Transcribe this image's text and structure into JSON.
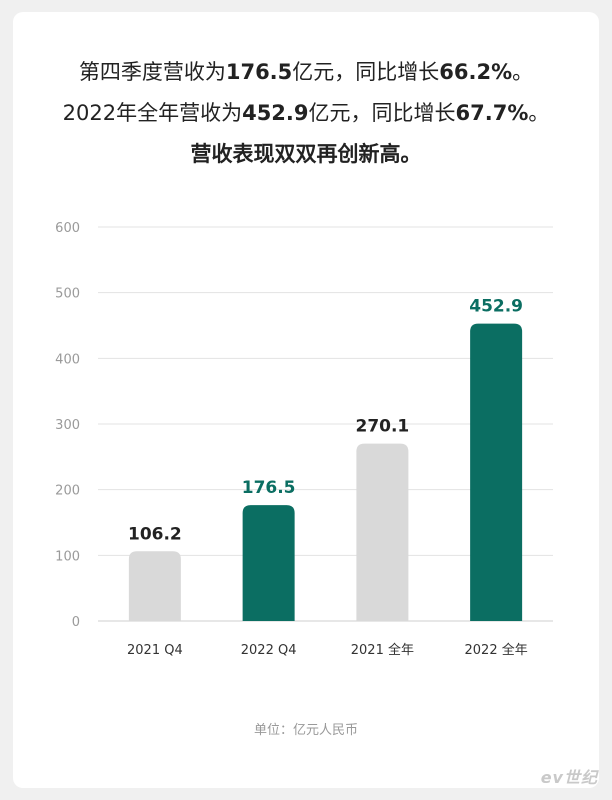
{
  "headline": {
    "line1": {
      "pre": "第四季度营收为",
      "v1": "176.5",
      "mid": "亿元，同比增长",
      "v2": "66.2%",
      "post": "。"
    },
    "line2": {
      "pre": "2022年全年营收为",
      "v1": "452.9",
      "mid": "亿元，同比增长",
      "v2": "67.7%",
      "post": "。"
    },
    "line3": "营收表现双双再创新高。"
  },
  "unit_label": "单位：亿元人民币",
  "watermark": "ev世纪",
  "colors": {
    "highlight": "#0b6e62",
    "muted": "#d9d9d9",
    "grid": "#e3e3e3"
  },
  "chart_data": {
    "type": "bar",
    "categories": [
      "2021 Q4",
      "2022 Q4",
      "2021 全年",
      "2022 全年"
    ],
    "values": [
      106.2,
      176.5,
      270.1,
      452.9
    ],
    "value_labels": [
      "106.2",
      "176.5",
      "270.1",
      "452.9"
    ],
    "highlighted": [
      false,
      true,
      false,
      true
    ],
    "ylim": [
      0,
      600
    ],
    "yticks": [
      0,
      100,
      200,
      300,
      400,
      500,
      600
    ],
    "grid": true,
    "title": "",
    "xlabel": "",
    "ylabel": ""
  }
}
